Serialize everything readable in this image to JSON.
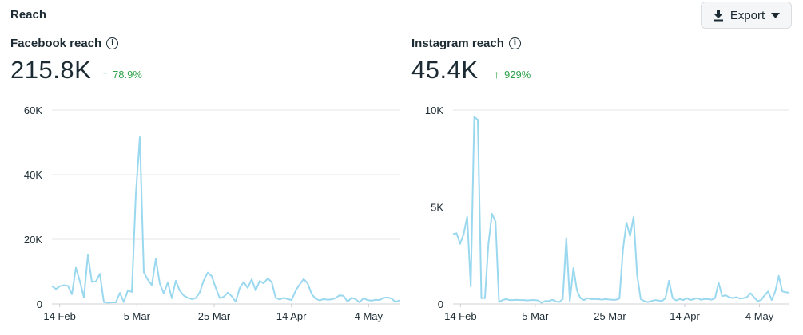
{
  "section": {
    "title": "Reach"
  },
  "export": {
    "label": "Export",
    "icon": "download-icon",
    "caret_icon": "caret-down-icon"
  },
  "colors": {
    "line": "#9ad8ef",
    "grid": "#e4e6eb",
    "positive": "#31a24c"
  },
  "panels": [
    {
      "title": "Facebook reach",
      "value": "215.8K",
      "change": "78.9%",
      "change_icon": "arrow-up-icon"
    },
    {
      "title": "Instagram reach",
      "value": "45.4K",
      "change": "929%",
      "change_icon": "arrow-up-icon"
    }
  ],
  "chart_data": [
    {
      "type": "line",
      "title": "Facebook reach",
      "x_start": "2024-02-12",
      "x_tick_labels": [
        "14 Feb",
        "5 Mar",
        "25 Mar",
        "14 Apr",
        "4 May"
      ],
      "y_tick_labels": [
        "0",
        "20K",
        "40K",
        "60K"
      ],
      "ylim": [
        0,
        60000
      ],
      "grid": true,
      "series": [
        {
          "values": [
            5600,
            4600,
            5500,
            5800,
            5600,
            3000,
            11200,
            7000,
            2000,
            15100,
            6800,
            7000,
            9300,
            600,
            400,
            500,
            500,
            3400,
            600,
            4200,
            3700,
            34000,
            51600,
            9800,
            7500,
            5800,
            13900,
            6300,
            3200,
            6700,
            1800,
            7200,
            4100,
            2600,
            1900,
            1500,
            1800,
            3600,
            7300,
            9700,
            8600,
            5000,
            1800,
            2200,
            3500,
            2400,
            700,
            4900,
            6800,
            5000,
            7600,
            4200,
            7100,
            6400,
            7900,
            6800,
            1900,
            1400,
            1900,
            1500,
            1200,
            4100,
            6000,
            7700,
            6400,
            3100,
            1600,
            1100,
            1500,
            1300,
            1400,
            1800,
            2700,
            2500,
            700,
            1900,
            1500,
            500,
            1800,
            1200,
            1000,
            1300,
            1200,
            1900,
            2000,
            1700,
            600,
            1100
          ]
        }
      ]
    },
    {
      "type": "line",
      "title": "Instagram reach",
      "x_start": "2024-02-12",
      "x_tick_labels": [
        "14 Feb",
        "5 Mar",
        "25 Mar",
        "14 Apr",
        "4 May"
      ],
      "y_tick_labels": [
        "0",
        "5K",
        "10K"
      ],
      "ylim": [
        0,
        10000
      ],
      "grid": true,
      "series": [
        {
          "values": [
            3600,
            3650,
            3100,
            3600,
            4500,
            900,
            9650,
            9500,
            300,
            300,
            3100,
            4650,
            4250,
            100,
            200,
            250,
            200,
            200,
            220,
            200,
            200,
            180,
            200,
            200,
            180,
            60,
            150,
            150,
            220,
            130,
            100,
            250,
            3400,
            150,
            1850,
            700,
            300,
            200,
            300,
            250,
            250,
            250,
            220,
            250,
            230,
            220,
            220,
            280,
            2800,
            4200,
            3500,
            4500,
            1500,
            250,
            150,
            100,
            150,
            200,
            180,
            150,
            300,
            1200,
            300,
            180,
            250,
            200,
            300,
            200,
            250,
            300,
            220,
            250,
            250,
            220,
            300,
            1100,
            400,
            450,
            350,
            300,
            350,
            280,
            300,
            350,
            550,
            350,
            150,
            200,
            450,
            650,
            200,
            650,
            1450,
            650,
            600,
            580
          ]
        }
      ]
    }
  ]
}
